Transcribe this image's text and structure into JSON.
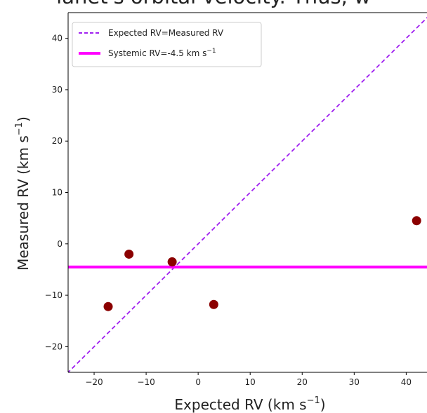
{
  "page": {
    "top_text": "lanet's orbital velocity. Thus, w"
  },
  "chart_data": {
    "type": "scatter",
    "xlabel": "Expected RV (km s",
    "xlabel_sup": "−1",
    "xlabel_end": ")",
    "ylabel": "Measured RV (km s",
    "ylabel_sup": "−1",
    "ylabel_end": ")",
    "xlim": [
      -25,
      44
    ],
    "ylim": [
      -25,
      45
    ],
    "xticks": [
      -20,
      -10,
      0,
      10,
      20,
      30,
      40
    ],
    "xtick_labels": [
      "−20",
      "−10",
      "0",
      "10",
      "20",
      "30",
      "40"
    ],
    "yticks": [
      -20,
      -10,
      0,
      10,
      20,
      30,
      40
    ],
    "ytick_labels": [
      "−20",
      "−10",
      "0",
      "10",
      "20",
      "30",
      "40"
    ],
    "points": [
      {
        "x": -17.3,
        "y": -12.2
      },
      {
        "x": -13.3,
        "y": -2.0
      },
      {
        "x": -5.0,
        "y": -3.5
      },
      {
        "x": 3.0,
        "y": -11.8
      },
      {
        "x": 42.0,
        "y": 4.5
      }
    ],
    "point_color": "#8b0000",
    "one_to_one_line": {
      "color": "#a020f0",
      "style": "dashed"
    },
    "systemic_line": {
      "y": -4.5,
      "color": "#ff00ff"
    },
    "legend": {
      "position": "top-left",
      "entries": [
        {
          "label": "Expected RV=Measured RV",
          "color": "#a020f0",
          "style": "dashed"
        },
        {
          "label": "Systemic RV=-4.5 km s",
          "label_sup": "−1",
          "color": "#ff00ff",
          "style": "solid"
        }
      ]
    }
  }
}
